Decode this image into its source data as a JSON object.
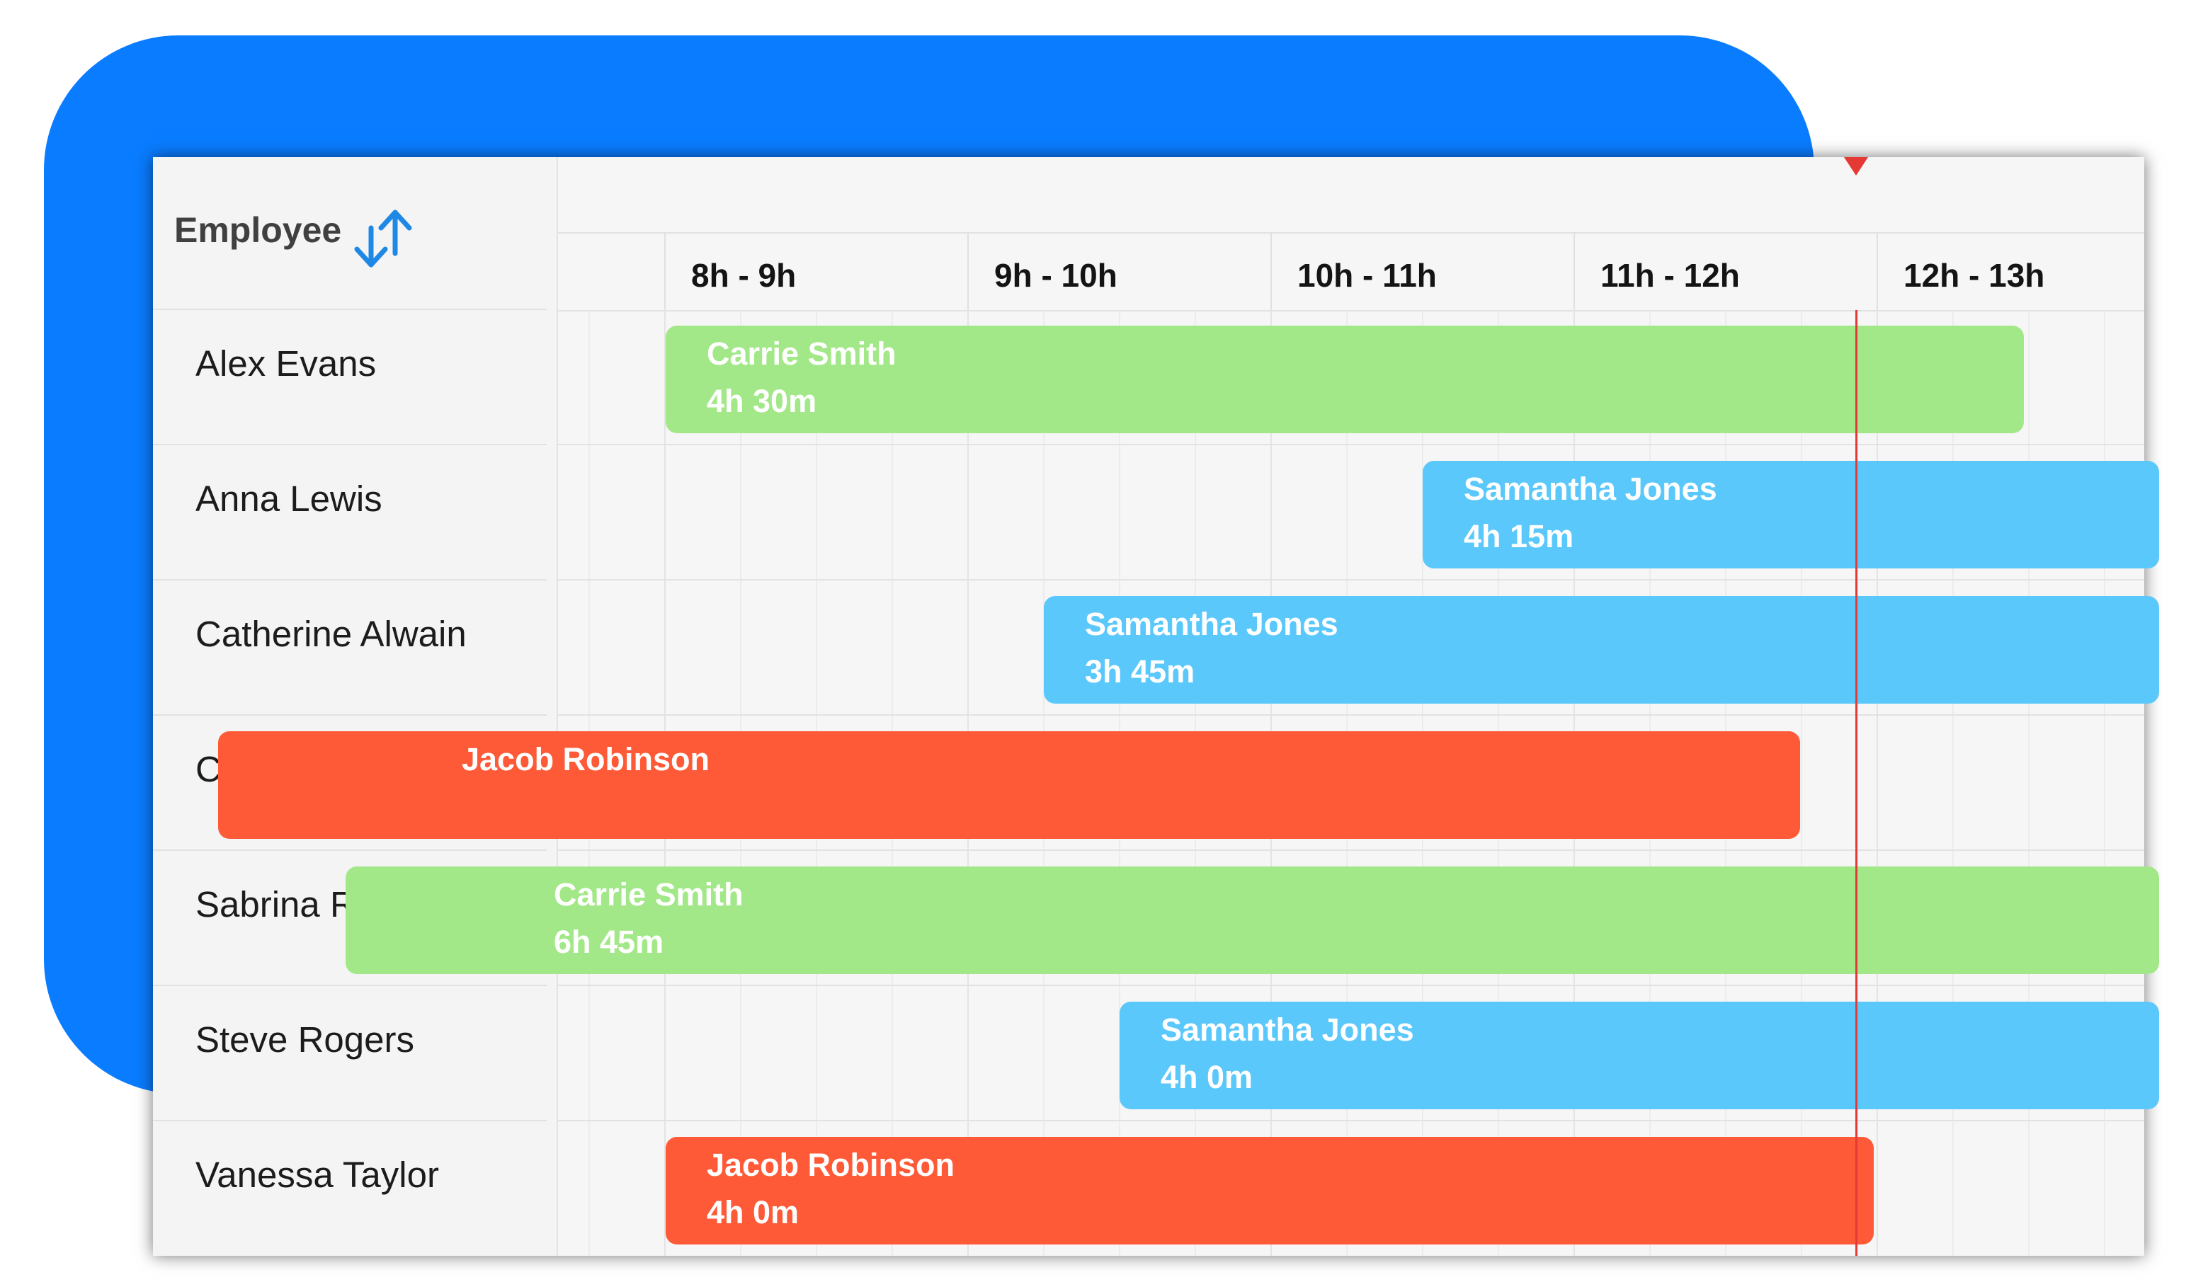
{
  "header": {
    "title": "Employee",
    "sort_icon": "sort-toggle-icon"
  },
  "hours": [
    "8h - 9h",
    "9h - 10h",
    "10h - 11h",
    "11h - 12h",
    "12h - 13h"
  ],
  "employees": [
    "Alex Evans",
    "Anna Lewis",
    "Catherine Alwain",
    "Chris Adams",
    "Sabrina Roberts",
    "Steve Rogers",
    "Vanessa Taylor"
  ],
  "tasks": [
    {
      "name": "Carrie Smith",
      "duration": "4h 30m"
    },
    {
      "name": "Samantha Jones",
      "duration": "4h 15m"
    },
    {
      "name": "Samantha Jones",
      "duration": "3h 45m"
    },
    {
      "name": "Jacob Robinson",
      "duration": ""
    },
    {
      "name": "Carrie Smith",
      "duration": "6h 45m"
    },
    {
      "name": "Samantha Jones",
      "duration": "4h 0m"
    },
    {
      "name": "Jacob Robinson",
      "duration": "4h 0m"
    }
  ],
  "colors": {
    "accent_blue": "#0a7cff",
    "task_green": "#a3e888",
    "task_blue": "#5bc8fb",
    "task_red": "#ff5a38",
    "current_time": "#e53935"
  }
}
